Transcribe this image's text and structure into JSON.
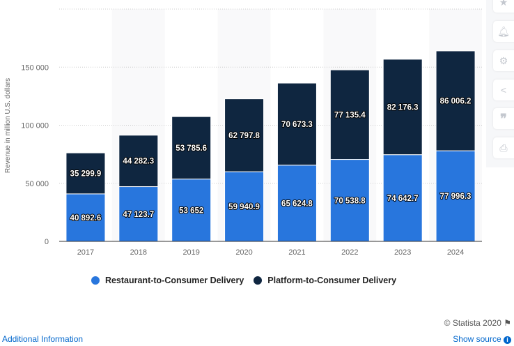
{
  "chart_data": {
    "type": "bar",
    "stacked": true,
    "categories": [
      "2017",
      "2018",
      "2019",
      "2020",
      "2021",
      "2022",
      "2023",
      "2024"
    ],
    "series": [
      {
        "name": "Restaurant-to-Consumer Delivery",
        "color": "#2876dd",
        "values": [
          40892.6,
          47123.7,
          53652,
          59940.9,
          65624.8,
          70538.8,
          74642.7,
          77996.3
        ],
        "labels": [
          "40 892.6",
          "47 123.7",
          "53 652",
          "59 940.9",
          "65 624.8",
          "70 538.8",
          "74 642.7",
          "77 996.3"
        ]
      },
      {
        "name": "Platform-to-Consumer Delivery",
        "color": "#0f2640",
        "values": [
          35299.9,
          44282.3,
          53785.6,
          62797.8,
          70673.3,
          77135.4,
          82176.3,
          86006.2
        ],
        "labels": [
          "35 299.9",
          "44 282.3",
          "53 785.6",
          "62 797.8",
          "70 673.3",
          "77 135.4",
          "82 176.3",
          "86 006.2"
        ]
      }
    ],
    "ylabel": "Revenue in million U.S. dollars",
    "xlabel": "",
    "ylim": [
      0,
      200000
    ],
    "yticks": [
      0,
      50000,
      100000,
      150000
    ],
    "ytick_labels": [
      "0",
      "50 000",
      "100 000",
      "150 000"
    ],
    "grid": true,
    "legend": "bottom"
  },
  "footer": {
    "copyright": "© Statista 2020",
    "additional_info": "Additional Information",
    "show_source": "Show source"
  },
  "sidebar_icons": [
    "star-icon",
    "bell-icon",
    "gear-icon",
    "share-icon",
    "quote-icon",
    "print-icon"
  ]
}
